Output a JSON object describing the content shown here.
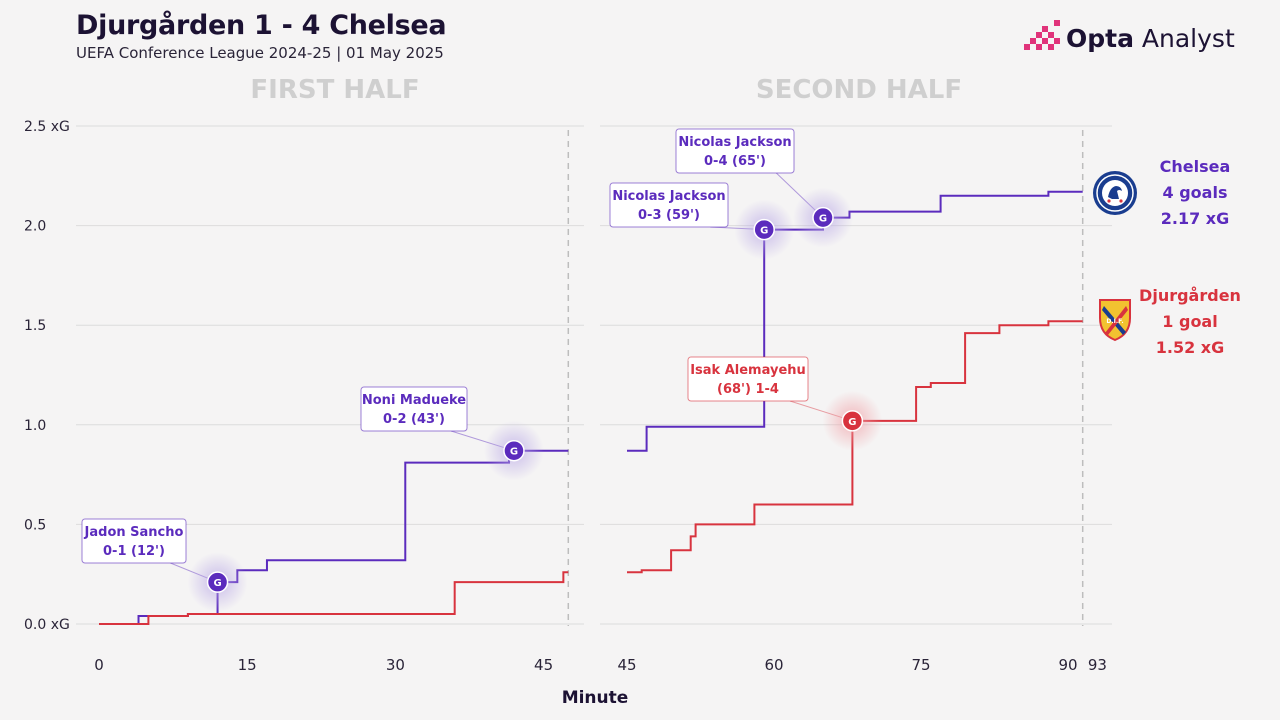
{
  "header": {
    "title": "Djurgården 1 - 4 Chelsea",
    "subtitle": "UEFA Conference League 2024-25 | 01 May 2025",
    "logo_text_bold": "Opta",
    "logo_text_regular": " Analyst"
  },
  "colors": {
    "chelsea": "#5b2bbd",
    "djurgarden": "#d8333e",
    "background": "#f5f4f4",
    "grid": "#dcdcdc",
    "half_label": "#cfcfcf"
  },
  "teams": {
    "chelsea": {
      "name": "Chelsea",
      "goals": "4 goals",
      "xg": "2.17 xG",
      "crest_icon": "chelsea-crest-icon"
    },
    "djurgarden": {
      "name": "Djurgården",
      "goals": "1 goal",
      "xg": "1.52 xG",
      "crest_icon": "djurgarden-crest-icon"
    }
  },
  "chart_data": {
    "type": "line",
    "title": "Djurgården 1 - 4 Chelsea",
    "subtitle": "UEFA Conference League 2024-25 | 01 May 2025",
    "xlabel": "Minute",
    "ylabel": "",
    "line_shape": "step",
    "ylim": [
      0,
      2.5
    ],
    "yticks": [
      0,
      0.5,
      1.0,
      1.5,
      2.0,
      2.5
    ],
    "ytick_labels": [
      "0.0 xG",
      "0.5",
      "1.0",
      "1.5",
      "2.0",
      "2.5 xG"
    ],
    "grid": true,
    "panels": [
      {
        "label": "FIRST HALF",
        "xlim": [
          0,
          48
        ],
        "xticks": [
          0,
          15,
          30,
          45
        ],
        "end_marker": 47.5,
        "series": [
          {
            "name": "Chelsea",
            "team": "chelsea",
            "points": [
              [
                0,
                0
              ],
              [
                4,
                0.04
              ],
              [
                9,
                0.05
              ],
              [
                12,
                0.21
              ],
              [
                14,
                0.27
              ],
              [
                17,
                0.32
              ],
              [
                31,
                0.81
              ],
              [
                41.5,
                0.87
              ],
              [
                47.5,
                0.87
              ]
            ]
          },
          {
            "name": "Djurgården",
            "team": "djurgarden",
            "points": [
              [
                0,
                0
              ],
              [
                5,
                0.04
              ],
              [
                9,
                0.05
              ],
              [
                36,
                0.21
              ],
              [
                47,
                0.26
              ],
              [
                47.5,
                0.26
              ]
            ]
          }
        ]
      },
      {
        "label": "SECOND HALF",
        "xlim": [
          45,
          93
        ],
        "xticks": [
          45,
          60,
          75,
          90,
          93
        ],
        "end_marker": 91.5,
        "series": [
          {
            "name": "Chelsea",
            "team": "chelsea",
            "points": [
              [
                45,
                0.87
              ],
              [
                47,
                0.99
              ],
              [
                59,
                1.98
              ],
              [
                59.8,
                1.98
              ],
              [
                63,
                1.98
              ],
              [
                65,
                2.04
              ],
              [
                67.7,
                2.07
              ],
              [
                77,
                2.15
              ],
              [
                88,
                2.17
              ],
              [
                91.5,
                2.17
              ]
            ]
          },
          {
            "name": "Djurgården",
            "team": "djurgarden",
            "points": [
              [
                45,
                0.26
              ],
              [
                46.5,
                0.27
              ],
              [
                49.5,
                0.37
              ],
              [
                51.5,
                0.44
              ],
              [
                52,
                0.5
              ],
              [
                58,
                0.6
              ],
              [
                68,
                1.02
              ],
              [
                74.5,
                1.19
              ],
              [
                76,
                1.21
              ],
              [
                79.5,
                1.46
              ],
              [
                83,
                1.5
              ],
              [
                88,
                1.52
              ],
              [
                91.5,
                1.52
              ]
            ]
          }
        ]
      }
    ],
    "goals": [
      {
        "team": "chelsea",
        "panel": 0,
        "minute": 12,
        "xg": 0.21,
        "label_line1": "Jadon Sancho",
        "label_line2": "0-1 (12')"
      },
      {
        "team": "chelsea",
        "panel": 0,
        "minute": 42,
        "xg": 0.87,
        "label_line1": "Noni Madueke",
        "label_line2": "0-2 (43')"
      },
      {
        "team": "chelsea",
        "panel": 1,
        "minute": 59,
        "xg": 1.98,
        "label_line1": "Nicolas Jackson",
        "label_line2": "0-3 (59')"
      },
      {
        "team": "chelsea",
        "panel": 1,
        "minute": 65,
        "xg": 2.04,
        "label_line1": "Nicolas Jackson",
        "label_line2": "0-4 (65')"
      },
      {
        "team": "djurgarden",
        "panel": 1,
        "minute": 68,
        "xg": 1.02,
        "label_line1": "Isak Alemayehu",
        "label_line2": "(68') 1-4"
      }
    ],
    "goal_marker_text": "G"
  }
}
